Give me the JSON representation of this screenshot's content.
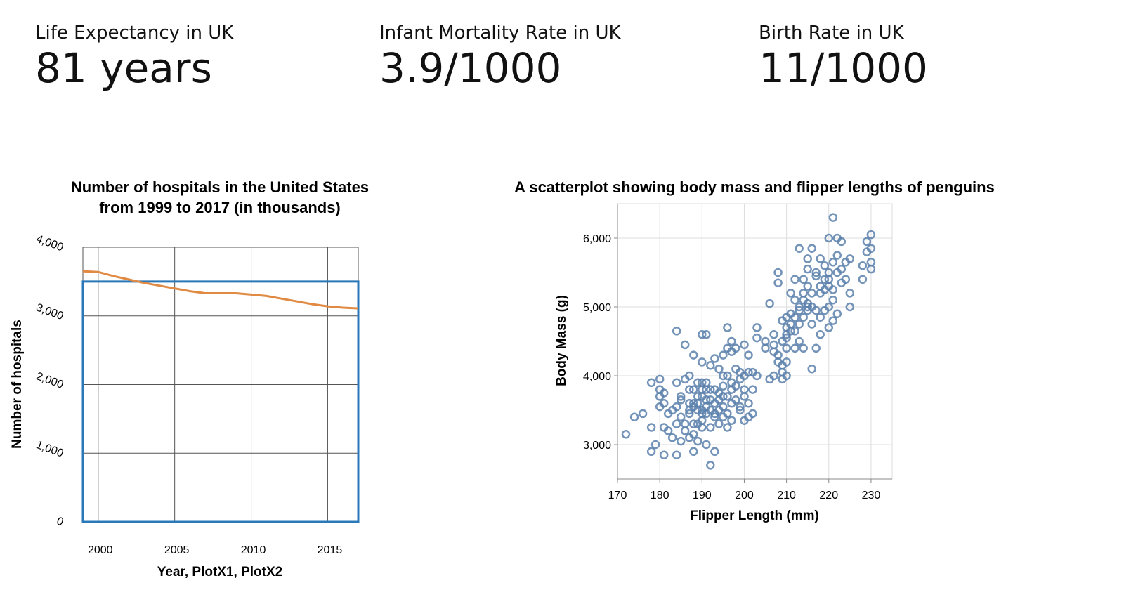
{
  "kpis": [
    {
      "label": "Life Expectancy in UK",
      "value": "81 years"
    },
    {
      "label": "Infant Mortality Rate in UK",
      "value": "3.9/1000"
    },
    {
      "label": "Birth Rate in UK",
      "value": "11/1000"
    }
  ],
  "colors": {
    "line": "#e08a43",
    "selection": "#2a78b8",
    "points": "#5b80ab",
    "grid": "#dddddd",
    "dark_grid": "#555555"
  },
  "chart_data": [
    {
      "type": "line",
      "title": [
        "Number of hospitals in the United States",
        "from 1999 to 2017 (in thousands)"
      ],
      "xlabel": "Year, PlotX1, PlotX2",
      "ylabel": "Number of hospitals",
      "x_ticks": [
        "2000",
        "2005",
        "2010",
        "2015"
      ],
      "y_ticks": [
        "0",
        "1,000",
        "2,000",
        "3,000",
        "4,000"
      ],
      "xlim": [
        1999,
        2017
      ],
      "ylim": [
        0,
        4000
      ],
      "selection": {
        "x": [
          1999,
          2017
        ],
        "y": [
          0,
          3500
        ]
      },
      "x": [
        1999,
        2000,
        2001,
        2002,
        2003,
        2004,
        2005,
        2006,
        2007,
        2008,
        2009,
        2010,
        2011,
        2012,
        2013,
        2014,
        2015,
        2016,
        2017
      ],
      "values": [
        3650,
        3640,
        3580,
        3530,
        3480,
        3440,
        3400,
        3360,
        3330,
        3330,
        3330,
        3310,
        3290,
        3250,
        3210,
        3170,
        3140,
        3120,
        3110
      ]
    },
    {
      "type": "scatter",
      "title": "A scatterplot showing body mass and flipper lengths of penguins",
      "xlabel": "Flipper Length (mm)",
      "ylabel": "Body Mass (g)",
      "x_ticks": [
        "170",
        "180",
        "190",
        "200",
        "210",
        "220",
        "230"
      ],
      "y_ticks": [
        "3,000",
        "4,000",
        "5,000",
        "6,000"
      ],
      "xlim": [
        170,
        235
      ],
      "ylim": [
        2500,
        6500
      ],
      "points": [
        [
          172,
          3150
        ],
        [
          174,
          3400
        ],
        [
          176,
          3450
        ],
        [
          178,
          3250
        ],
        [
          178,
          3900
        ],
        [
          178,
          2900
        ],
        [
          179,
          3000
        ],
        [
          180,
          3950
        ],
        [
          180,
          3800
        ],
        [
          180,
          3700
        ],
        [
          180,
          3550
        ],
        [
          181,
          3600
        ],
        [
          181,
          3750
        ],
        [
          181,
          3250
        ],
        [
          181,
          2850
        ],
        [
          182,
          3450
        ],
        [
          182,
          3200
        ],
        [
          183,
          3100
        ],
        [
          183,
          3500
        ],
        [
          184,
          3550
        ],
        [
          184,
          3300
        ],
        [
          184,
          3900
        ],
        [
          184,
          4650
        ],
        [
          184,
          2850
        ],
        [
          185,
          3050
        ],
        [
          185,
          3650
        ],
        [
          185,
          3700
        ],
        [
          185,
          3400
        ],
        [
          186,
          3950
        ],
        [
          186,
          3200
        ],
        [
          186,
          4450
        ],
        [
          186,
          3300
        ],
        [
          187,
          3600
        ],
        [
          187,
          3500
        ],
        [
          187,
          3800
        ],
        [
          187,
          3100
        ],
        [
          187,
          3450
        ],
        [
          187,
          4000
        ],
        [
          188,
          3600
        ],
        [
          188,
          3300
        ],
        [
          188,
          3550
        ],
        [
          188,
          3800
        ],
        [
          188,
          4300
        ],
        [
          188,
          2900
        ],
        [
          188,
          3150
        ],
        [
          189,
          3500
        ],
        [
          189,
          3700
        ],
        [
          189,
          3900
        ],
        [
          189,
          3300
        ],
        [
          189,
          3050
        ],
        [
          189,
          3600
        ],
        [
          190,
          3700
        ],
        [
          190,
          3450
        ],
        [
          190,
          4600
        ],
        [
          190,
          3250
        ],
        [
          190,
          3800
        ],
        [
          190,
          3900
        ],
        [
          190,
          4200
        ],
        [
          190,
          3500
        ],
        [
          190,
          3350
        ],
        [
          191,
          3800
        ],
        [
          191,
          3000
        ],
        [
          191,
          3650
        ],
        [
          191,
          3900
        ],
        [
          191,
          4600
        ],
        [
          191,
          3450
        ],
        [
          191,
          3550
        ],
        [
          192,
          2700
        ],
        [
          192,
          3500
        ],
        [
          192,
          3800
        ],
        [
          192,
          4150
        ],
        [
          192,
          3250
        ],
        [
          192,
          3650
        ],
        [
          193,
          3400
        ],
        [
          193,
          3800
        ],
        [
          193,
          4250
        ],
        [
          193,
          3600
        ],
        [
          193,
          2900
        ],
        [
          193,
          3450
        ],
        [
          194,
          3500
        ],
        [
          194,
          3300
        ],
        [
          194,
          3750
        ],
        [
          194,
          4100
        ],
        [
          194,
          3650
        ],
        [
          195,
          3550
        ],
        [
          195,
          3850
        ],
        [
          195,
          4300
        ],
        [
          195,
          4000
        ],
        [
          195,
          3400
        ],
        [
          195,
          3700
        ],
        [
          196,
          4000
        ],
        [
          196,
          3700
        ],
        [
          196,
          3450
        ],
        [
          196,
          4700
        ],
        [
          196,
          4400
        ],
        [
          196,
          3250
        ],
        [
          197,
          3600
        ],
        [
          197,
          3900
        ],
        [
          197,
          4350
        ],
        [
          197,
          3350
        ],
        [
          197,
          4500
        ],
        [
          197,
          3800
        ],
        [
          198,
          3650
        ],
        [
          198,
          4400
        ],
        [
          198,
          3850
        ],
        [
          198,
          4100
        ],
        [
          199,
          3500
        ],
        [
          199,
          3950
        ],
        [
          199,
          3550
        ],
        [
          199,
          4050
        ],
        [
          200,
          3800
        ],
        [
          200,
          4450
        ],
        [
          200,
          3700
        ],
        [
          200,
          4000
        ],
        [
          200,
          3350
        ],
        [
          201,
          3600
        ],
        [
          201,
          3400
        ],
        [
          201,
          4050
        ],
        [
          201,
          4300
        ],
        [
          202,
          3800
        ],
        [
          202,
          3450
        ],
        [
          202,
          4050
        ],
        [
          203,
          4000
        ],
        [
          203,
          4700
        ],
        [
          203,
          4550
        ],
        [
          205,
          4500
        ],
        [
          205,
          4400
        ],
        [
          206,
          3950
        ],
        [
          206,
          5050
        ],
        [
          207,
          4000
        ],
        [
          207,
          4600
        ],
        [
          207,
          4350
        ],
        [
          207,
          4450
        ],
        [
          208,
          5350
        ],
        [
          208,
          4300
        ],
        [
          208,
          4200
        ],
        [
          208,
          5500
        ],
        [
          209,
          4800
        ],
        [
          209,
          4150
        ],
        [
          209,
          3950
        ],
        [
          209,
          4050
        ],
        [
          209,
          4500
        ],
        [
          210,
          4600
        ],
        [
          210,
          4700
        ],
        [
          210,
          4400
        ],
        [
          210,
          4850
        ],
        [
          210,
          4200
        ],
        [
          210,
          4000
        ],
        [
          210,
          4550
        ],
        [
          211,
          4650
        ],
        [
          211,
          4900
        ],
        [
          211,
          4750
        ],
        [
          211,
          5200
        ],
        [
          212,
          4650
        ],
        [
          212,
          4850
        ],
        [
          212,
          5400
        ],
        [
          212,
          5100
        ],
        [
          212,
          4400
        ],
        [
          213,
          5000
        ],
        [
          213,
          4500
        ],
        [
          213,
          4950
        ],
        [
          213,
          5850
        ],
        [
          213,
          4750
        ],
        [
          214,
          5100
        ],
        [
          214,
          5200
        ],
        [
          214,
          4850
        ],
        [
          214,
          5400
        ],
        [
          214,
          4400
        ],
        [
          215,
          5000
        ],
        [
          215,
          5700
        ],
        [
          215,
          5050
        ],
        [
          215,
          4950
        ],
        [
          215,
          5300
        ],
        [
          215,
          5550
        ],
        [
          216,
          5850
        ],
        [
          216,
          5000
        ],
        [
          216,
          4750
        ],
        [
          216,
          4100
        ],
        [
          216,
          5200
        ],
        [
          217,
          4950
        ],
        [
          217,
          5450
        ],
        [
          217,
          4400
        ],
        [
          217,
          5500
        ],
        [
          218,
          5300
        ],
        [
          218,
          5200
        ],
        [
          218,
          5700
        ],
        [
          218,
          4850
        ],
        [
          218,
          4600
        ],
        [
          219,
          5250
        ],
        [
          219,
          4950
        ],
        [
          219,
          5400
        ],
        [
          219,
          5600
        ],
        [
          220,
          5500
        ],
        [
          220,
          5000
        ],
        [
          220,
          6000
        ],
        [
          220,
          5300
        ],
        [
          220,
          4700
        ],
        [
          220,
          5400
        ],
        [
          221,
          5250
        ],
        [
          221,
          4800
        ],
        [
          221,
          5650
        ],
        [
          221,
          6300
        ],
        [
          221,
          5100
        ],
        [
          222,
          5500
        ],
        [
          222,
          5750
        ],
        [
          222,
          4900
        ],
        [
          222,
          6000
        ],
        [
          223,
          5350
        ],
        [
          223,
          5950
        ],
        [
          223,
          5550
        ],
        [
          224,
          5650
        ],
        [
          224,
          5400
        ],
        [
          225,
          5000
        ],
        [
          225,
          5200
        ],
        [
          225,
          5700
        ],
        [
          228,
          5600
        ],
        [
          228,
          5400
        ],
        [
          229,
          5800
        ],
        [
          229,
          5950
        ],
        [
          230,
          5650
        ],
        [
          230,
          5850
        ],
        [
          230,
          6050
        ],
        [
          230,
          5550
        ]
      ]
    }
  ]
}
